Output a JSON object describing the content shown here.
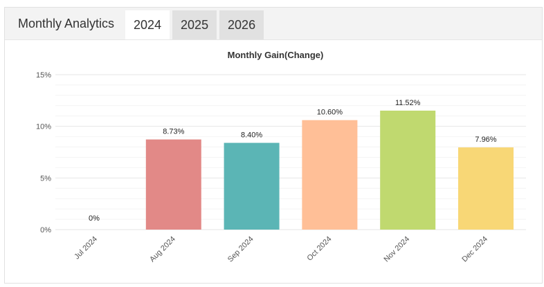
{
  "header": {
    "title": "Monthly Analytics",
    "tabs": [
      {
        "label": "2024",
        "active": true
      },
      {
        "label": "2025",
        "active": false
      },
      {
        "label": "2026",
        "active": false
      }
    ]
  },
  "chart_data": {
    "type": "bar",
    "title": "Monthly Gain(Change)",
    "categories": [
      "Jul 2024",
      "Aug 2024",
      "Sep 2024",
      "Oct 2024",
      "Nov 2024",
      "Dec 2024"
    ],
    "values": [
      0,
      8.73,
      8.4,
      10.6,
      11.52,
      7.96
    ],
    "data_labels": [
      "0%",
      "8.73%",
      "8.40%",
      "10.60%",
      "11.52%",
      "7.96%"
    ],
    "colors": [
      "#e8e8e8",
      "#e28987",
      "#5bb5b5",
      "#ffbf97",
      "#c0d96f",
      "#f8d776"
    ],
    "ylim": [
      0,
      15
    ],
    "yticks": [
      0,
      5,
      10,
      15
    ],
    "ytick_labels": [
      "0%",
      "5%",
      "10%",
      "15%"
    ],
    "grid": true,
    "legend": "none"
  }
}
